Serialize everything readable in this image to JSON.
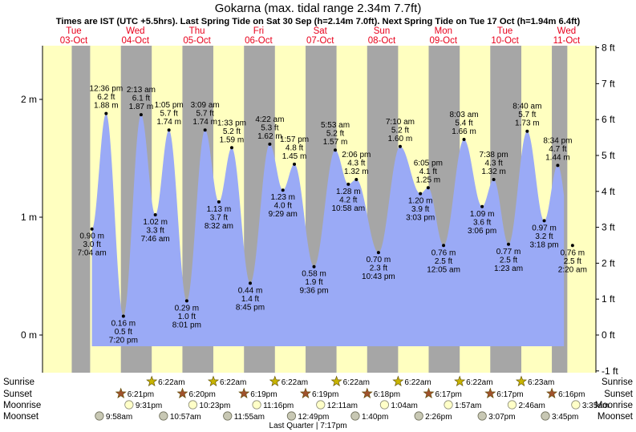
{
  "chart_data": {
    "type": "area",
    "title": "Gokarna (max. tidal range 2.34m 7.7ft)",
    "subtitle": "Times are IST (UTC +5.5hrs). Last Spring Tide on Sat 30 Sep (h=2.14m 7.0ft). Next Spring Tide on Tue 17 Oct (h=1.94m 6.4ft)",
    "x_unit": "hours since 00:00 on 03-Oct",
    "xlim": [
      -0.8,
      192.3
    ],
    "ylim": [
      -0.3,
      2.45
    ],
    "ylabel_left": "m",
    "ylabel_right": "ft",
    "left_ticks": [
      {
        "value": 0,
        "label": "0 m"
      },
      {
        "value": 1,
        "label": "1 m"
      },
      {
        "value": 2,
        "label": "2 m"
      }
    ],
    "right_ticks": [
      {
        "ft": -1,
        "label": "-1 ft"
      },
      {
        "ft": 0,
        "label": "0 ft"
      },
      {
        "ft": 1,
        "label": "1 ft"
      },
      {
        "ft": 2,
        "label": "2 ft"
      },
      {
        "ft": 3,
        "label": "3 ft"
      },
      {
        "ft": 4,
        "label": "4 ft"
      },
      {
        "ft": 5,
        "label": "5 ft"
      },
      {
        "ft": 6,
        "label": "6 ft"
      },
      {
        "ft": 7,
        "label": "7 ft"
      },
      {
        "ft": 8,
        "label": "8 ft"
      }
    ],
    "days": [
      {
        "weekday": "Tue",
        "date": "03-Oct",
        "hour": 0
      },
      {
        "weekday": "Wed",
        "date": "04-Oct",
        "hour": 24
      },
      {
        "weekday": "Thu",
        "date": "05-Oct",
        "hour": 48
      },
      {
        "weekday": "Fri",
        "date": "06-Oct",
        "hour": 72
      },
      {
        "weekday": "Sat",
        "date": "07-Oct",
        "hour": 96
      },
      {
        "weekday": "Sun",
        "date": "08-Oct",
        "hour": 120
      },
      {
        "weekday": "Mon",
        "date": "09-Oct",
        "hour": 144
      },
      {
        "weekday": "Tue",
        "date": "10-Oct",
        "hour": 168
      },
      {
        "weekday": "Wed",
        "date": "11-Oct",
        "hour": 192
      }
    ],
    "night_bands": [
      {
        "from": -0.8,
        "to": 6.37
      },
      {
        "from": 18.35,
        "to": 30.37
      },
      {
        "from": 42.33,
        "to": 54.37
      },
      {
        "from": 66.32,
        "to": 78.37
      },
      {
        "from": 90.32,
        "to": 102.37
      },
      {
        "from": 114.3,
        "to": 126.37
      },
      {
        "from": 138.28,
        "to": 150.37
      },
      {
        "from": 162.28,
        "to": 174.38
      },
      {
        "from": 186.27,
        "to": 192.3
      }
    ],
    "tides": [
      {
        "t": 7.07,
        "h": 0.9,
        "time": "7:04 am",
        "m": "0.90 m",
        "ft": "3.0 ft",
        "type": "low"
      },
      {
        "t": 12.6,
        "h": 1.88,
        "time": "12:36 pm",
        "m": "1.88 m",
        "ft": "6.2 ft",
        "type": "high"
      },
      {
        "t": 19.33,
        "h": 0.16,
        "time": "7:20 pm",
        "m": "0.16 m",
        "ft": "0.5 ft",
        "type": "low"
      },
      {
        "t": 26.22,
        "h": 1.87,
        "time": "2:13 am",
        "m": "1.87 m",
        "ft": "6.1 ft",
        "type": "high"
      },
      {
        "t": 31.77,
        "h": 1.02,
        "time": "7:46 am",
        "m": "1.02 m",
        "ft": "3.3 ft",
        "type": "low"
      },
      {
        "t": 37.08,
        "h": 1.74,
        "time": "1:05 pm",
        "m": "1.74 m",
        "ft": "5.7 ft",
        "type": "high"
      },
      {
        "t": 44.02,
        "h": 0.29,
        "time": "8:01 pm",
        "m": "0.29 m",
        "ft": "1.0 ft",
        "type": "low"
      },
      {
        "t": 51.15,
        "h": 1.74,
        "time": "3:09 am",
        "m": "1.74 m",
        "ft": "5.7 ft",
        "type": "high"
      },
      {
        "t": 56.53,
        "h": 1.13,
        "time": "8:32 am",
        "m": "1.13 m",
        "ft": "3.7 ft",
        "type": "low"
      },
      {
        "t": 61.55,
        "h": 1.59,
        "time": "1:33 pm",
        "m": "1.59 m",
        "ft": "5.2 ft",
        "type": "high"
      },
      {
        "t": 68.75,
        "h": 0.44,
        "time": "8:45 pm",
        "m": "0.44 m",
        "ft": "1.4 ft",
        "type": "low"
      },
      {
        "t": 76.37,
        "h": 1.62,
        "time": "4:22 am",
        "m": "1.62 m",
        "ft": "5.3 ft",
        "type": "high"
      },
      {
        "t": 81.48,
        "h": 1.23,
        "time": "9:29 am",
        "m": "1.23 m",
        "ft": "4.0 ft",
        "type": "low"
      },
      {
        "t": 85.95,
        "h": 1.45,
        "time": "1:57 pm",
        "m": "1.45 m",
        "ft": "4.8 ft",
        "type": "high"
      },
      {
        "t": 93.6,
        "h": 0.58,
        "time": "9:36 pm",
        "m": "0.58 m",
        "ft": "1.9 ft",
        "type": "low"
      },
      {
        "t": 101.88,
        "h": 1.57,
        "time": "5:53 am",
        "m": "1.57 m",
        "ft": "5.2 ft",
        "type": "high"
      },
      {
        "t": 106.97,
        "h": 1.28,
        "time": "10:58 am",
        "m": "1.28 m",
        "ft": "4.2 ft",
        "type": "low"
      },
      {
        "t": 110.1,
        "h": 1.32,
        "time": "2:06 pm",
        "m": "1.32 m",
        "ft": "4.3 ft",
        "type": "high"
      },
      {
        "t": 118.72,
        "h": 0.7,
        "time": "10:43 pm",
        "m": "0.70 m",
        "ft": "2.3 ft",
        "type": "low"
      },
      {
        "t": 127.17,
        "h": 1.6,
        "time": "7:10 am",
        "m": "1.60 m",
        "ft": "5.2 ft",
        "type": "high"
      },
      {
        "t": 135.05,
        "h": 1.2,
        "time": "3:03 pm",
        "m": "1.20 m",
        "ft": "3.9 ft",
        "type": "low"
      },
      {
        "t": 138.08,
        "h": 1.25,
        "time": "6:05 pm",
        "m": "1.25 m",
        "ft": "4.1 ft",
        "type": "high"
      },
      {
        "t": 144.08,
        "h": 0.76,
        "time": "12:05 am",
        "m": "0.76 m",
        "ft": "2.5 ft",
        "type": "low"
      },
      {
        "t": 152.05,
        "h": 1.66,
        "time": "8:03 am",
        "m": "1.66 m",
        "ft": "5.4 ft",
        "type": "high"
      },
      {
        "t": 159.1,
        "h": 1.09,
        "time": "3:06 pm",
        "m": "1.09 m",
        "ft": "3.6 ft",
        "type": "low"
      },
      {
        "t": 163.63,
        "h": 1.32,
        "time": "7:38 pm",
        "m": "1.32 m",
        "ft": "4.3 ft",
        "type": "high"
      },
      {
        "t": 169.38,
        "h": 0.77,
        "time": "1:23 am",
        "m": "0.77 m",
        "ft": "2.5 ft",
        "type": "low"
      },
      {
        "t": 176.67,
        "h": 1.73,
        "time": "8:40 am",
        "m": "1.73 m",
        "ft": "5.7 ft",
        "type": "high"
      },
      {
        "t": 183.3,
        "h": 0.97,
        "time": "3:18 pm",
        "m": "0.97 m",
        "ft": "3.2 ft",
        "type": "low"
      },
      {
        "t": 188.57,
        "h": 1.44,
        "time": "8:34 pm",
        "m": "1.44 m",
        "ft": "4.7 ft",
        "type": "high"
      },
      {
        "t": 194.33,
        "h": 0.76,
        "time": "2:20 am",
        "m": "0.76 m",
        "ft": "2.5 ft",
        "type": "low"
      }
    ],
    "astro_row_labels": [
      "Sunrise",
      "Sunset",
      "Moonrise",
      "Moonset"
    ],
    "sunrise": [
      {
        "t": 30.37,
        "label": "6:22am"
      },
      {
        "t": 54.37,
        "label": "6:22am"
      },
      {
        "t": 78.37,
        "label": "6:22am"
      },
      {
        "t": 102.37,
        "label": "6:22am"
      },
      {
        "t": 126.37,
        "label": "6:22am"
      },
      {
        "t": 150.37,
        "label": "6:22am"
      },
      {
        "t": 174.38,
        "label": "6:23am"
      }
    ],
    "sunset": [
      {
        "t": 18.35,
        "label": "6:21pm"
      },
      {
        "t": 42.33,
        "label": "6:20pm"
      },
      {
        "t": 66.32,
        "label": "6:19pm"
      },
      {
        "t": 90.32,
        "label": "6:19pm"
      },
      {
        "t": 114.3,
        "label": "6:18pm"
      },
      {
        "t": 138.28,
        "label": "6:17pm"
      },
      {
        "t": 162.28,
        "label": "6:17pm"
      },
      {
        "t": 186.27,
        "label": "6:16pm"
      }
    ],
    "moonrise": [
      {
        "t": 21.52,
        "label": "9:31pm"
      },
      {
        "t": 46.38,
        "label": "10:23pm"
      },
      {
        "t": 71.27,
        "label": "11:16pm"
      },
      {
        "t": 96.18,
        "label": "12:11am"
      },
      {
        "t": 121.07,
        "label": "1:04am"
      },
      {
        "t": 145.95,
        "label": "1:57am"
      },
      {
        "t": 170.77,
        "label": "2:46am"
      },
      {
        "t": 195.58,
        "label": "3:35am"
      }
    ],
    "moonset": [
      {
        "t": 9.97,
        "label": "9:58am"
      },
      {
        "t": 34.95,
        "label": "10:57am"
      },
      {
        "t": 59.92,
        "label": "11:55am"
      },
      {
        "t": 84.82,
        "label": "12:49pm"
      },
      {
        "t": 109.67,
        "label": "1:40pm"
      },
      {
        "t": 134.43,
        "label": "2:26pm"
      },
      {
        "t": 159.12,
        "label": "3:07pm"
      },
      {
        "t": 183.75,
        "label": "3:45pm"
      }
    ],
    "moon_phase": {
      "label": "Last Quarter | 7:17pm",
      "t": 91.28
    }
  },
  "colors": {
    "day": "#ffffc0",
    "night": "#a6a6a6",
    "water": "#9aaaf6",
    "day_header": "#e8001c",
    "text": "#000000",
    "sunrise_star": "#c8b400",
    "sunset_star": "#a0522d",
    "moonrise_fill": "#ffffc8",
    "moonset_fill": "#c8c8b4"
  }
}
